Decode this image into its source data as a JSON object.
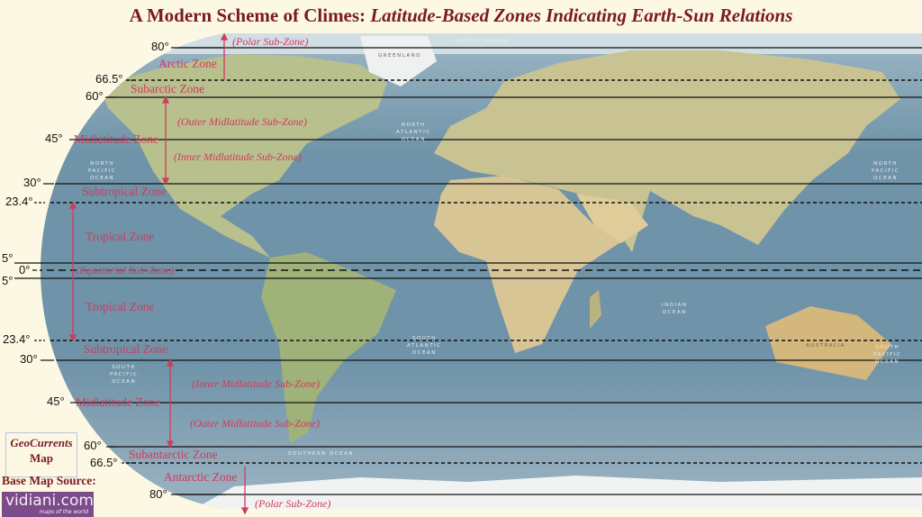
{
  "title": {
    "main": "A Modern Scheme of Climes:",
    "italic": "Latitude-Based Zones Indicating Earth-Sun Relations"
  },
  "latitudes": {
    "n80": "80°",
    "n66": "66.5°",
    "n60": "60°",
    "n45": "45°",
    "n30": "30°",
    "n23": "23.4°",
    "n5": "5°",
    "eq": "0°",
    "s5": "5°",
    "s23": "23.4°",
    "s30": "30°",
    "s45": "45°",
    "s60": "60°",
    "s66": "66.5°",
    "s80": "80°"
  },
  "zones": {
    "polar_n": "(Polar Sub-Zone)",
    "arctic": "Arctic Zone",
    "subarctic": "Subarctic Zone",
    "outer_mid_n": "(Outer Midlatitude Sub-Zone)",
    "mid_n": "Midlatitude Zone",
    "inner_mid_n": "(Inner Midlatitude Sub-Zone)",
    "subtropical_n": "Subtropical Zone",
    "tropical_n": "Tropical Zone",
    "equatorial": "(Equatorial Sub-Zone)",
    "tropical_s": "Tropical Zone",
    "subtropical_s": "Subtropical Zone",
    "inner_mid_s": "(Inner Midlatitude Sub-Zone)",
    "mid_s": "Midlatitude Zone",
    "outer_mid_s": "(Outer Midlatitude Sub-Zone)",
    "subantarctic": "Subantarctic Zone",
    "antarctic": "Antarctic Zone",
    "polar_s": "(Polar Sub-Zone)"
  },
  "map_labels": {
    "arctic_ocean": "ARCTIC OCEAN",
    "greenland": "GREENLAND",
    "north_atlantic": "NORTH\nATLANTIC\nOCEAN",
    "north_pacific_w": "NORTH\nPACIFIC\nOCEAN",
    "north_pacific_e": "NORTH\nPACIFIC\nOCEAN",
    "south_pacific_w": "SOUTH\nPACIFIC\nOCEAN",
    "south_pacific_e": "SOUTH\nPACIFIC\nOCEAN",
    "south_atlantic": "SOUTH\nATLANTIC\nOCEAN",
    "indian": "INDIAN\nOCEAN",
    "southern": "SOUTHERN   OCEAN",
    "australia": "AUSTRALIA"
  },
  "credit": {
    "line1": "GeoCurrents",
    "line2": "Map",
    "source_label": "Base Map Source:",
    "logo_text": "vidiani.com",
    "logo_tagline": "maps of the world"
  },
  "colors": {
    "title": "#7a1a24",
    "zone_text": "#d23a5a",
    "ocean": "#6f93a8",
    "background": "#fdf8e4"
  }
}
